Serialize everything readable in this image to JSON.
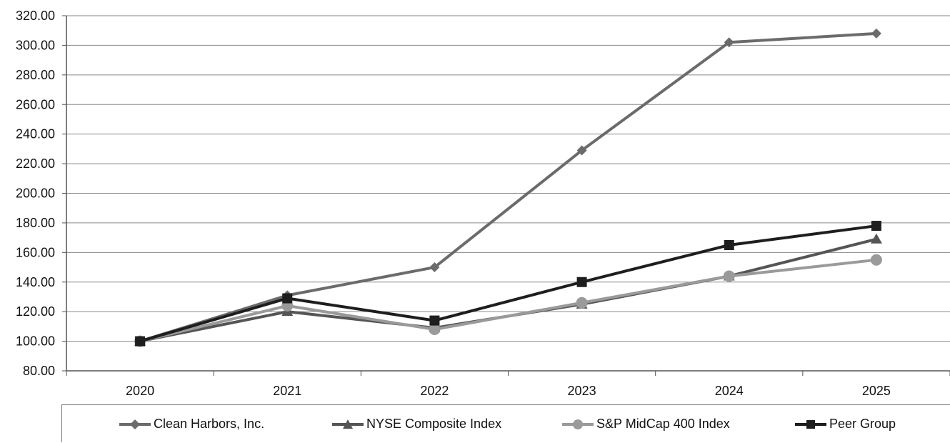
{
  "chart_data": {
    "type": "line",
    "title": "",
    "xlabel": "",
    "ylabel": "",
    "categories": [
      "2020",
      "2021",
      "2022",
      "2023",
      "2024",
      "2025"
    ],
    "ylim": [
      80,
      320
    ],
    "ytick_step": 20,
    "ytick_labels": [
      "80.00",
      "100.00",
      "120.00",
      "140.00",
      "160.00",
      "180.00",
      "200.00",
      "220.00",
      "240.00",
      "260.00",
      "280.00",
      "300.00",
      "320.00"
    ],
    "grid": "horizontal",
    "legend_position": "bottom",
    "series": [
      {
        "name": "Clean Harbors, Inc.",
        "marker": "diamond",
        "color": "#6b6b6b",
        "values": [
          100,
          131,
          150,
          229,
          302,
          308
        ]
      },
      {
        "name": "NYSE Composite Index",
        "marker": "triangle",
        "color": "#555555",
        "values": [
          100,
          120,
          109,
          125,
          144,
          169
        ]
      },
      {
        "name": "S&P MidCap 400 Index",
        "marker": "circle",
        "color": "#9a9a9a",
        "values": [
          100,
          124,
          108,
          126,
          144,
          155
        ]
      },
      {
        "name": "Peer Group",
        "marker": "square",
        "color": "#1e1e1e",
        "values": [
          100,
          129,
          114,
          140,
          165,
          178
        ]
      }
    ]
  }
}
